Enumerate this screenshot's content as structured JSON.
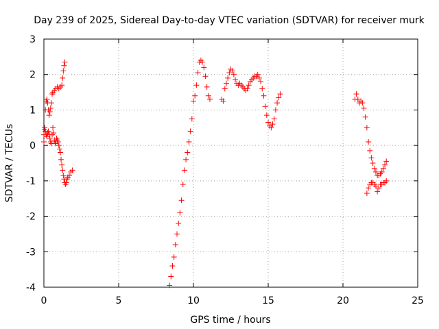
{
  "chart_data": {
    "type": "scatter",
    "title": "Day 239 of 2025, Sidereal Day-to-day VTEC variation (SDTVAR) for receiver murk",
    "xlabel": "GPS time / hours",
    "ylabel": "SDTVAR / TECUs",
    "xlim": [
      0,
      25
    ],
    "ylim": [
      -4,
      3
    ],
    "xticks": [
      0,
      5,
      10,
      15,
      20,
      25
    ],
    "yticks": [
      -4,
      -3,
      -2,
      -1,
      0,
      1,
      2,
      3
    ],
    "xtick_labels": [
      "0",
      "5",
      "10",
      "15",
      "20",
      "25"
    ],
    "ytick_labels": [
      "-4",
      "-3",
      "-2",
      "-1",
      "0",
      "1",
      "2",
      "3"
    ],
    "grid": true,
    "marker": "plus",
    "color": "#ff0000",
    "series": [
      {
        "name": "early-upper",
        "points": [
          [
            0.0,
            0.1
          ],
          [
            0.05,
            0.5
          ],
          [
            0.1,
            1.0
          ],
          [
            0.15,
            1.25
          ],
          [
            0.2,
            1.3
          ],
          [
            0.25,
            1.2
          ],
          [
            0.3,
            1.0
          ],
          [
            0.35,
            0.85
          ],
          [
            0.4,
            0.95
          ],
          [
            0.45,
            1.05
          ],
          [
            0.5,
            1.2
          ],
          [
            0.55,
            1.45
          ],
          [
            0.6,
            1.5
          ],
          [
            0.7,
            1.55
          ],
          [
            0.8,
            1.6
          ],
          [
            0.9,
            1.65
          ],
          [
            1.0,
            1.6
          ],
          [
            1.1,
            1.65
          ],
          [
            1.2,
            1.7
          ],
          [
            1.25,
            1.9
          ],
          [
            1.3,
            2.1
          ],
          [
            1.35,
            2.25
          ],
          [
            1.4,
            2.35
          ]
        ]
      },
      {
        "name": "early-lower",
        "points": [
          [
            0.0,
            0.3
          ],
          [
            0.05,
            0.45
          ],
          [
            0.1,
            0.4
          ],
          [
            0.15,
            0.3
          ],
          [
            0.2,
            0.25
          ],
          [
            0.25,
            0.35
          ],
          [
            0.3,
            0.4
          ],
          [
            0.35,
            0.3
          ],
          [
            0.4,
            0.2
          ],
          [
            0.45,
            0.1
          ],
          [
            0.5,
            0.05
          ],
          [
            0.55,
            0.3
          ],
          [
            0.6,
            0.5
          ],
          [
            0.65,
            0.35
          ],
          [
            0.7,
            0.15
          ],
          [
            0.75,
            0.05
          ],
          [
            0.8,
            0.1
          ],
          [
            0.85,
            0.2
          ],
          [
            0.9,
            0.15
          ],
          [
            0.95,
            0.1
          ],
          [
            1.0,
            0.0
          ],
          [
            1.05,
            -0.1
          ],
          [
            1.1,
            -0.2
          ],
          [
            1.15,
            -0.4
          ],
          [
            1.2,
            -0.55
          ],
          [
            1.25,
            -0.7
          ],
          [
            1.3,
            -0.85
          ],
          [
            1.35,
            -0.95
          ],
          [
            1.4,
            -1.05
          ],
          [
            1.45,
            -1.1
          ],
          [
            1.5,
            -1.05
          ],
          [
            1.55,
            -0.95
          ],
          [
            1.6,
            -0.9
          ],
          [
            1.7,
            -0.85
          ],
          [
            1.8,
            -0.75
          ],
          [
            1.9,
            -0.7
          ]
        ]
      },
      {
        "name": "midday-rise",
        "points": [
          [
            8.4,
            -3.95
          ],
          [
            8.5,
            -3.7
          ],
          [
            8.6,
            -3.4
          ],
          [
            8.7,
            -3.15
          ],
          [
            8.8,
            -2.8
          ],
          [
            8.9,
            -2.5
          ],
          [
            9.0,
            -2.2
          ],
          [
            9.1,
            -1.9
          ],
          [
            9.2,
            -1.55
          ],
          [
            9.3,
            -1.1
          ],
          [
            9.4,
            -0.7
          ],
          [
            9.5,
            -0.4
          ],
          [
            9.6,
            -0.2
          ],
          [
            9.7,
            0.1
          ],
          [
            9.8,
            0.4
          ],
          [
            9.9,
            0.75
          ],
          [
            10.0,
            1.25
          ],
          [
            10.1,
            1.4
          ],
          [
            10.2,
            1.7
          ],
          [
            10.3,
            2.05
          ],
          [
            10.4,
            2.35
          ],
          [
            10.5,
            2.4
          ],
          [
            10.6,
            2.35
          ],
          [
            10.7,
            2.2
          ],
          [
            10.8,
            1.95
          ],
          [
            10.9,
            1.65
          ],
          [
            11.0,
            1.4
          ],
          [
            11.1,
            1.3
          ]
        ]
      },
      {
        "name": "afternoon",
        "points": [
          [
            11.9,
            1.3
          ],
          [
            12.0,
            1.25
          ],
          [
            12.1,
            1.6
          ],
          [
            12.2,
            1.75
          ],
          [
            12.3,
            1.9
          ],
          [
            12.4,
            2.05
          ],
          [
            12.5,
            2.15
          ],
          [
            12.6,
            2.1
          ],
          [
            12.7,
            2.0
          ],
          [
            12.8,
            1.85
          ],
          [
            12.9,
            1.75
          ],
          [
            13.0,
            1.7
          ],
          [
            13.1,
            1.75
          ],
          [
            13.2,
            1.7
          ],
          [
            13.3,
            1.65
          ],
          [
            13.4,
            1.6
          ],
          [
            13.5,
            1.55
          ],
          [
            13.6,
            1.6
          ],
          [
            13.7,
            1.7
          ],
          [
            13.8,
            1.8
          ],
          [
            13.9,
            1.85
          ],
          [
            14.0,
            1.9
          ],
          [
            14.1,
            1.95
          ],
          [
            14.2,
            1.95
          ],
          [
            14.3,
            2.0
          ],
          [
            14.4,
            1.9
          ],
          [
            14.5,
            1.8
          ],
          [
            14.6,
            1.6
          ],
          [
            14.7,
            1.4
          ],
          [
            14.8,
            1.1
          ],
          [
            14.9,
            0.85
          ],
          [
            15.0,
            0.65
          ],
          [
            15.1,
            0.55
          ],
          [
            15.2,
            0.5
          ],
          [
            15.3,
            0.6
          ],
          [
            15.4,
            0.75
          ],
          [
            15.5,
            1.0
          ],
          [
            15.6,
            1.2
          ],
          [
            15.7,
            1.35
          ],
          [
            15.8,
            1.45
          ]
        ]
      },
      {
        "name": "evening-upper",
        "points": [
          [
            20.8,
            1.3
          ],
          [
            20.9,
            1.45
          ],
          [
            21.0,
            1.3
          ],
          [
            21.1,
            1.2
          ],
          [
            21.2,
            1.25
          ],
          [
            21.3,
            1.2
          ],
          [
            21.4,
            1.05
          ],
          [
            21.5,
            0.8
          ],
          [
            21.6,
            0.5
          ],
          [
            21.7,
            0.1
          ],
          [
            21.8,
            -0.15
          ],
          [
            21.9,
            -0.35
          ],
          [
            22.0,
            -0.5
          ],
          [
            22.1,
            -0.65
          ],
          [
            22.2,
            -0.75
          ],
          [
            22.3,
            -0.85
          ],
          [
            22.4,
            -0.85
          ],
          [
            22.5,
            -0.8
          ],
          [
            22.6,
            -0.75
          ],
          [
            22.7,
            -0.65
          ],
          [
            22.8,
            -0.55
          ],
          [
            22.9,
            -0.45
          ]
        ]
      },
      {
        "name": "evening-lower",
        "points": [
          [
            21.6,
            -1.35
          ],
          [
            21.7,
            -1.2
          ],
          [
            21.8,
            -1.1
          ],
          [
            21.9,
            -1.05
          ],
          [
            22.0,
            -1.05
          ],
          [
            22.1,
            -1.1
          ],
          [
            22.2,
            -1.15
          ],
          [
            22.3,
            -1.3
          ],
          [
            22.4,
            -1.2
          ],
          [
            22.5,
            -1.1
          ],
          [
            22.6,
            -1.1
          ],
          [
            22.7,
            -1.05
          ],
          [
            22.8,
            -1.05
          ],
          [
            22.9,
            -1.0
          ]
        ]
      }
    ]
  }
}
